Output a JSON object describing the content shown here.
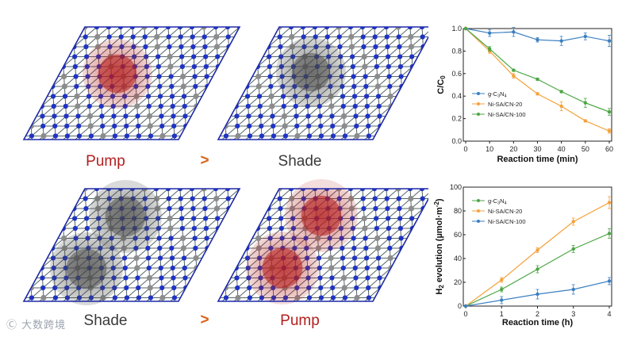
{
  "panels": {
    "top_left_label": "Pump",
    "top_right_label": "Shade",
    "bottom_left_label": "Shade",
    "bottom_right_label": "Pump",
    "comparison_symbol": ">",
    "pump_color": "#b41e1e",
    "shade_color": "#444444",
    "lattice_frame_color": "#1d2aa8",
    "nitrogen_color": "#1f33c4",
    "carbon_color": "#8c8c8c"
  },
  "watermark": "Ⓒ 大数跨境",
  "chart_data": [
    {
      "type": "line",
      "xlabel": "Reaction time (min)",
      "ylabel": "C/C0",
      "ylabel_main": "C/C",
      "ylabel_sub": "0",
      "xlim": [
        0,
        60
      ],
      "ylim": [
        0.0,
        1.0
      ],
      "xticks": [
        0,
        10,
        20,
        30,
        40,
        50,
        60
      ],
      "yticks": [
        0.0,
        0.2,
        0.4,
        0.6,
        0.8,
        1.0
      ],
      "legend_position": "center-left",
      "x": [
        0,
        10,
        20,
        30,
        40,
        50,
        60
      ],
      "series": [
        {
          "name": "g-C3N4",
          "name_main": "g-C",
          "name_s1": "3",
          "name_mid": "N",
          "name_s2": "4",
          "color": "#3a7fc1",
          "values": [
            1.0,
            0.96,
            0.97,
            0.9,
            0.89,
            0.93,
            0.89
          ],
          "errors": [
            0.0,
            0.03,
            0.04,
            0.02,
            0.04,
            0.03,
            0.05
          ]
        },
        {
          "name": "Ni-SA/CN-20",
          "color": "#f5a23a",
          "values": [
            1.0,
            0.8,
            0.58,
            0.42,
            0.31,
            0.18,
            0.09
          ],
          "errors": [
            0.0,
            0.02,
            0.02,
            0.01,
            0.04,
            0.01,
            0.02
          ]
        },
        {
          "name": "Ni-SA/CN-100",
          "color": "#4ca644",
          "values": [
            1.0,
            0.82,
            0.63,
            0.55,
            0.44,
            0.34,
            0.26
          ],
          "errors": [
            0.0,
            0.02,
            0.01,
            0.01,
            0.01,
            0.04,
            0.03
          ]
        }
      ]
    },
    {
      "type": "line",
      "xlabel": "Reaction time (h)",
      "ylabel": "H2 evolution (µmol·m-2)",
      "ylabel_a": "H",
      "ylabel_sub": "2",
      "ylabel_b": " evolution (µmol·m",
      "ylabel_sup": "-2",
      "ylabel_c": ")",
      "xlim": [
        0,
        4
      ],
      "ylim": [
        0,
        100
      ],
      "xticks": [
        0,
        1,
        2,
        3,
        4
      ],
      "yticks": [
        0,
        20,
        40,
        60,
        80,
        100
      ],
      "legend_position": "top-left",
      "x": [
        0,
        1,
        2,
        3,
        4
      ],
      "series": [
        {
          "name": "g-C3N4",
          "name_main": "g-C",
          "name_s1": "3",
          "name_mid": "N",
          "name_s2": "4",
          "color": "#4ca644",
          "values": [
            0,
            14,
            31,
            48,
            61
          ],
          "errors": [
            0,
            2,
            3,
            3,
            4
          ]
        },
        {
          "name": "Ni-SA/CN-20",
          "color": "#f5a23a",
          "values": [
            0,
            22,
            47,
            71,
            87
          ],
          "errors": [
            0,
            2,
            2,
            3,
            5
          ]
        },
        {
          "name": "Ni-SA/CN-100",
          "color": "#3a7fc1",
          "values": [
            0,
            5,
            10,
            14,
            21
          ],
          "errors": [
            0,
            3,
            4,
            4,
            3
          ]
        }
      ]
    }
  ]
}
